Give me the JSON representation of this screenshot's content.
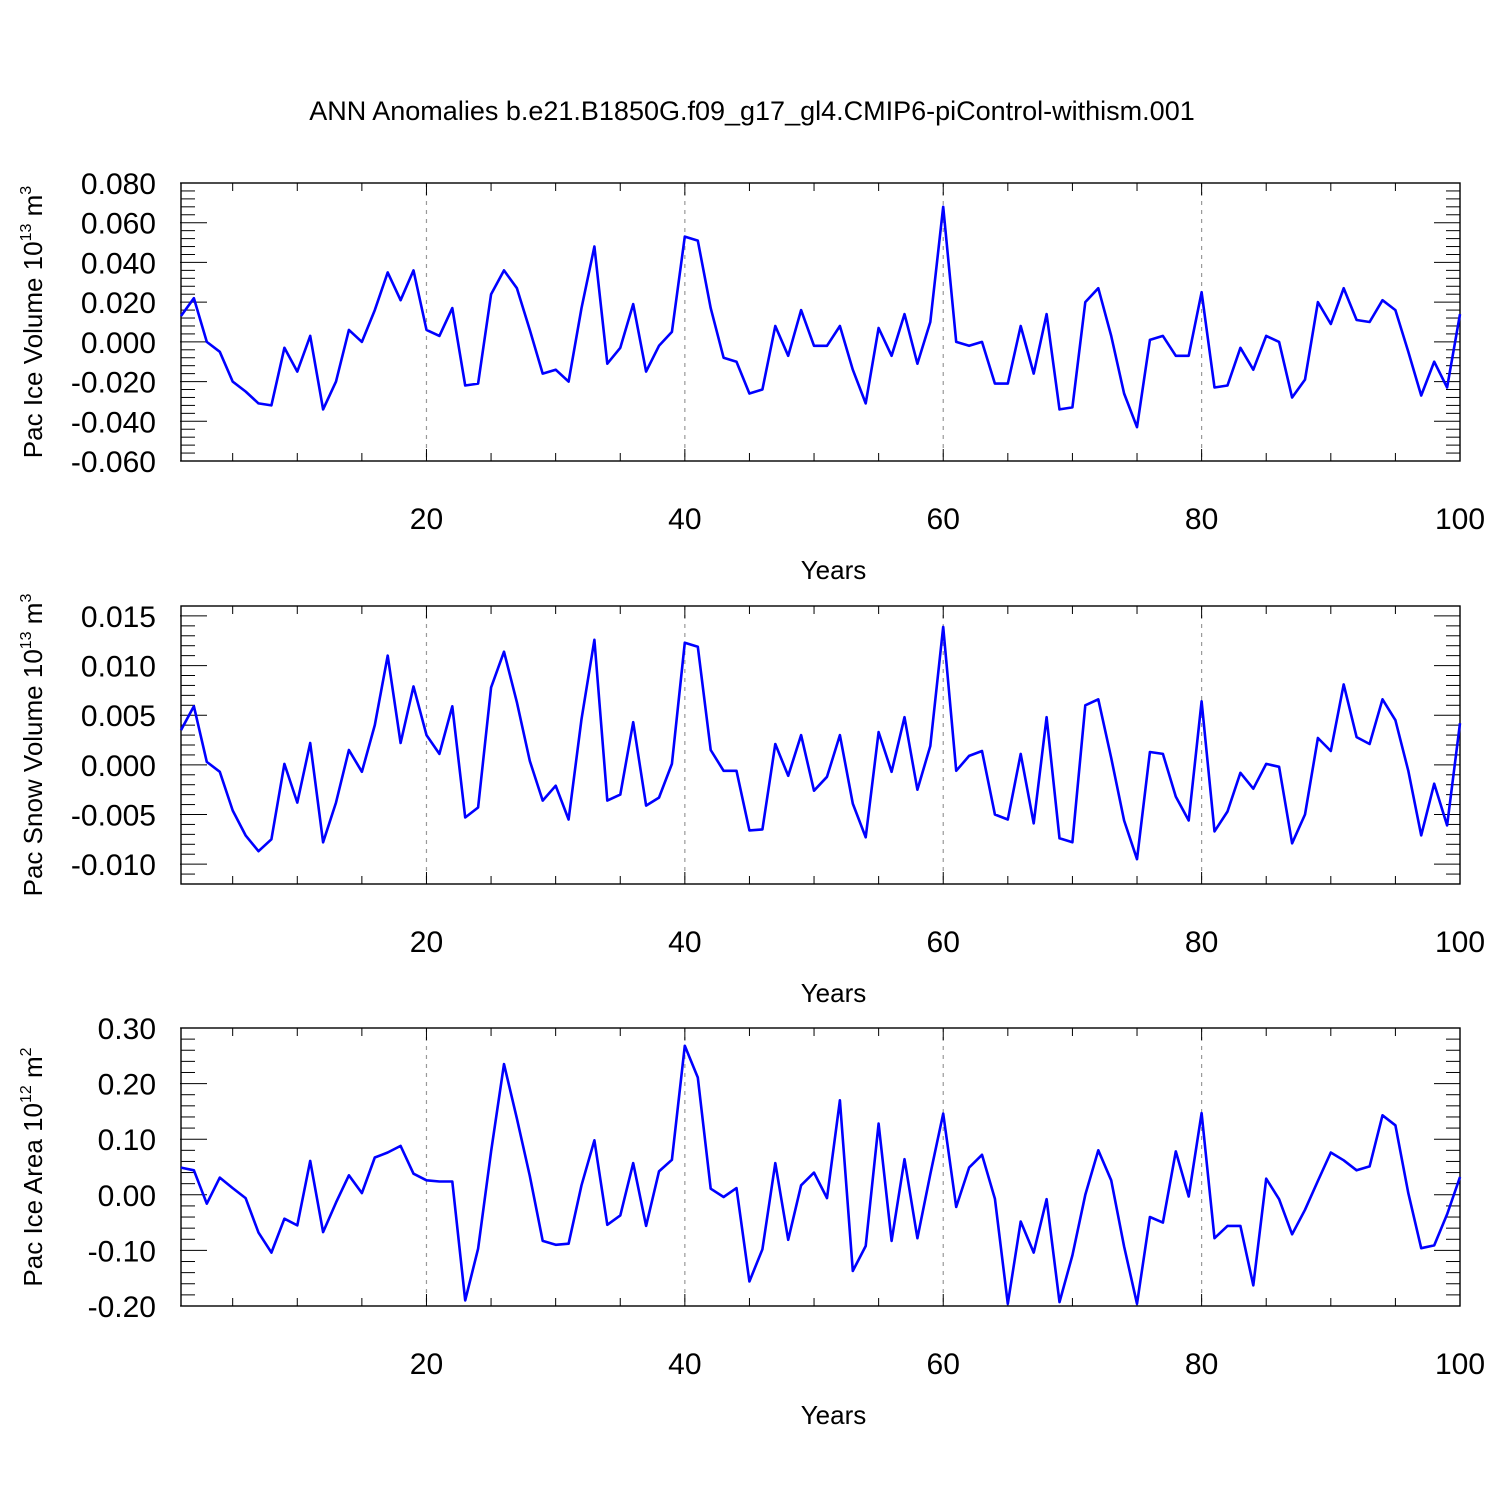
{
  "title": "ANN Anomalies b.e21.B1850G.f09_g17_gl4.CMIP6-piControl-withism.001",
  "chart_data": [
    {
      "type": "line",
      "title": "",
      "xlabel": "Years",
      "ylabel": {
        "text": "Pac Ice Volume 10",
        "sup": "13",
        "unit": " m",
        "unit_sup": "3"
      },
      "xlim": [
        1,
        100
      ],
      "ylim": [
        -0.06,
        0.08
      ],
      "xticks": [
        20,
        40,
        60,
        80,
        100
      ],
      "xtick_labels": [
        "20",
        "40",
        "60",
        "80",
        "100"
      ],
      "yticks": [
        -0.06,
        -0.04,
        -0.02,
        0.0,
        0.02,
        0.04,
        0.06,
        0.08
      ],
      "ytick_labels": [
        "-0.060",
        "-0.040",
        "-0.020",
        "0.000",
        "0.020",
        "0.040",
        "0.060",
        "0.080"
      ],
      "grid": "dashed vertical at x ticks",
      "line_color": "#0000ff",
      "series": [
        {
          "x_start": 1,
          "x_step": 1,
          "values": [
            0.013,
            0.022,
            0.0,
            -0.005,
            -0.02,
            -0.025,
            -0.031,
            -0.032,
            -0.003,
            -0.015,
            0.003,
            -0.034,
            -0.02,
            0.006,
            0.0,
            0.016,
            0.035,
            0.021,
            0.036,
            0.006,
            0.003,
            0.017,
            -0.022,
            -0.021,
            0.024,
            0.036,
            0.027,
            0.006,
            -0.016,
            -0.014,
            -0.02,
            0.017,
            0.048,
            -0.011,
            -0.003,
            0.019,
            -0.015,
            -0.002,
            0.005,
            0.053,
            0.051,
            0.017,
            -0.008,
            -0.01,
            -0.026,
            -0.024,
            0.008,
            -0.007,
            0.016,
            -0.002,
            -0.002,
            0.008,
            -0.014,
            -0.031,
            0.007,
            -0.007,
            0.014,
            -0.011,
            0.01,
            0.068,
            0.0,
            -0.002,
            0.0,
            -0.021,
            -0.021,
            0.008,
            -0.016,
            0.014,
            -0.034,
            -0.033,
            0.02,
            0.027,
            0.003,
            -0.026,
            -0.043,
            0.001,
            0.003,
            -0.007,
            -0.007,
            0.025,
            -0.023,
            -0.022,
            -0.003,
            -0.014,
            0.003,
            0.0,
            -0.028,
            -0.019,
            0.02,
            0.009,
            0.027,
            0.011,
            0.01,
            0.021,
            0.016,
            -0.005,
            -0.027,
            -0.01,
            -0.023,
            0.014
          ]
        }
      ]
    },
    {
      "type": "line",
      "title": "",
      "xlabel": "Years",
      "ylabel": {
        "text": "Pac Snow Volume 10",
        "sup": "13",
        "unit": " m",
        "unit_sup": "3"
      },
      "xlim": [
        1,
        100
      ],
      "ylim": [
        -0.012,
        0.016
      ],
      "xticks": [
        20,
        40,
        60,
        80,
        100
      ],
      "xtick_labels": [
        "20",
        "40",
        "60",
        "80",
        "100"
      ],
      "yticks": [
        -0.01,
        -0.005,
        0.0,
        0.005,
        0.01,
        0.015
      ],
      "ytick_labels": [
        "-0.010",
        "-0.005",
        "0.000",
        "0.005",
        "0.010",
        "0.015"
      ],
      "grid": "dashed vertical at x ticks",
      "line_color": "#0000ff",
      "series": [
        {
          "x_start": 1,
          "x_step": 1,
          "values": [
            0.0035,
            0.0059,
            0.0003,
            -0.0007,
            -0.0046,
            -0.0071,
            -0.0087,
            -0.0075,
            0.0001,
            -0.0038,
            0.0022,
            -0.0078,
            -0.0038,
            0.0015,
            -0.0007,
            0.004,
            0.011,
            0.0022,
            0.0079,
            0.003,
            0.0011,
            0.0059,
            -0.0053,
            -0.0043,
            0.0078,
            0.0114,
            0.0063,
            0.0004,
            -0.0036,
            -0.0021,
            -0.0055,
            0.0046,
            0.0126,
            -0.0036,
            -0.003,
            0.0043,
            -0.0041,
            -0.0033,
            0.0001,
            0.0123,
            0.0119,
            0.0015,
            -0.0006,
            -0.0006,
            -0.0066,
            -0.0065,
            0.0021,
            -0.0011,
            0.003,
            -0.0026,
            -0.0012,
            0.003,
            -0.0039,
            -0.0073,
            0.0033,
            -0.0007,
            0.0048,
            -0.0025,
            0.0019,
            0.0139,
            -0.0006,
            0.0009,
            0.0014,
            -0.005,
            -0.0055,
            0.0011,
            -0.0059,
            0.0048,
            -0.0074,
            -0.0078,
            0.006,
            0.0066,
            0.0007,
            -0.0056,
            -0.0095,
            0.0013,
            0.0011,
            -0.0032,
            -0.0056,
            0.0064,
            -0.0067,
            -0.0047,
            -0.0008,
            -0.0024,
            0.0001,
            -0.0002,
            -0.0079,
            -0.005,
            0.0027,
            0.0014,
            0.0081,
            0.0028,
            0.0021,
            0.0066,
            0.0045,
            -0.0006,
            -0.0071,
            -0.0019,
            -0.0061,
            0.0042
          ]
        }
      ]
    },
    {
      "type": "line",
      "title": "",
      "xlabel": "Years",
      "ylabel": {
        "text": "Pac Ice Area 10",
        "sup": "12",
        "unit": " m",
        "unit_sup": "2"
      },
      "xlim": [
        1,
        100
      ],
      "ylim": [
        -0.2,
        0.3
      ],
      "xticks": [
        20,
        40,
        60,
        80,
        100
      ],
      "xtick_labels": [
        "20",
        "40",
        "60",
        "80",
        "100"
      ],
      "yticks": [
        -0.2,
        -0.1,
        0.0,
        0.1,
        0.2,
        0.3
      ],
      "ytick_labels": [
        "-0.20",
        "-0.10",
        "0.00",
        "0.10",
        "0.20",
        "0.30"
      ],
      "grid": "dashed vertical at x ticks",
      "line_color": "#0000ff",
      "series": [
        {
          "x_start": 1,
          "x_step": 1,
          "values": [
            0.049,
            0.044,
            -0.016,
            0.031,
            0.012,
            -0.006,
            -0.068,
            -0.104,
            -0.043,
            -0.055,
            0.061,
            -0.067,
            -0.014,
            0.035,
            0.003,
            0.067,
            0.076,
            0.088,
            0.038,
            0.026,
            0.024,
            0.024,
            -0.19,
            -0.097,
            0.078,
            0.235,
            0.137,
            0.034,
            -0.083,
            -0.09,
            -0.088,
            0.017,
            0.098,
            -0.054,
            -0.037,
            0.057,
            -0.056,
            0.042,
            0.063,
            0.268,
            0.211,
            0.011,
            -0.004,
            0.012,
            -0.156,
            -0.098,
            0.057,
            -0.081,
            0.017,
            0.04,
            -0.006,
            0.17,
            -0.137,
            -0.092,
            0.128,
            -0.083,
            0.064,
            -0.078,
            0.037,
            0.146,
            -0.022,
            0.049,
            0.072,
            -0.007,
            -0.196,
            -0.048,
            -0.104,
            -0.008,
            -0.193,
            -0.109,
            0.0,
            0.08,
            0.026,
            -0.093,
            -0.196,
            -0.04,
            -0.05,
            0.078,
            -0.003,
            0.147,
            -0.078,
            -0.056,
            -0.056,
            -0.163,
            0.029,
            -0.008,
            -0.071,
            -0.027,
            0.025,
            0.076,
            0.062,
            0.044,
            0.051,
            0.143,
            0.125,
            0.003,
            -0.096,
            -0.091,
            -0.035,
            0.032
          ]
        }
      ]
    }
  ]
}
